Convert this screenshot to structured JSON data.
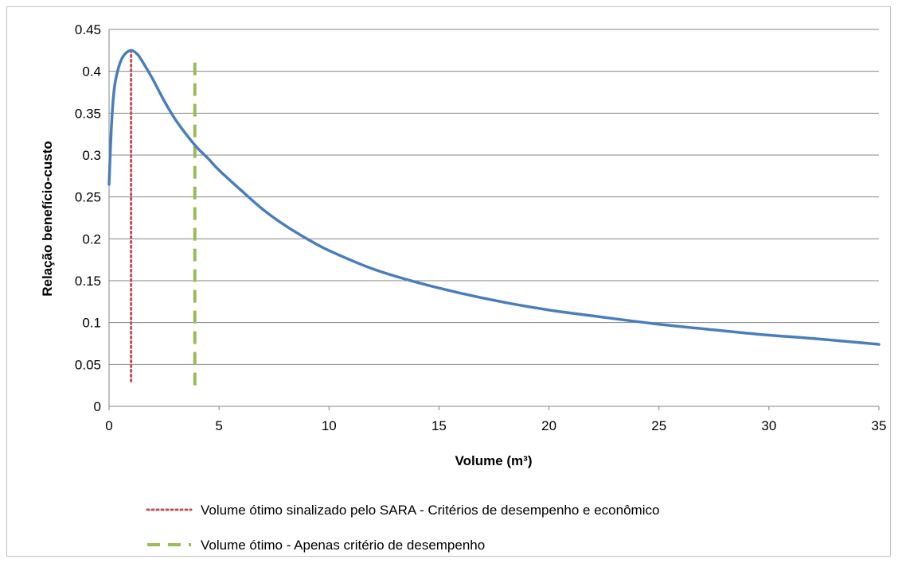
{
  "chart_data": {
    "type": "line",
    "title": "",
    "xlabel": "Volume (m³)",
    "ylabel": "Relação benefício-custo",
    "xlim": [
      0,
      35
    ],
    "ylim": [
      0,
      0.45
    ],
    "x_ticks": [
      "0",
      "5",
      "10",
      "15",
      "20",
      "25",
      "30",
      "35"
    ],
    "y_ticks": [
      "0",
      "0.05",
      "0.1",
      "0.15",
      "0.2",
      "0.25",
      "0.3",
      "0.35",
      "0.4",
      "0.45"
    ],
    "grid": "horizontal",
    "legend_position": "bottom",
    "series": [
      {
        "color": "#4a7ebb",
        "x": [
          0,
          0.1,
          0.2,
          0.3,
          0.5,
          0.7,
          1.0,
          1.3,
          1.6,
          2.0,
          2.5,
          3.0,
          3.5,
          4.0,
          4.5,
          5.0,
          6.0,
          7.0,
          8.0,
          9.0,
          10.0,
          12.0,
          14.0,
          16.0,
          18.0,
          20.0,
          22.0,
          25.0,
          28.0,
          30.0,
          32.0,
          35.0
        ],
        "y": [
          0.265,
          0.33,
          0.37,
          0.39,
          0.41,
          0.42,
          0.425,
          0.42,
          0.408,
          0.39,
          0.365,
          0.343,
          0.325,
          0.309,
          0.296,
          0.282,
          0.258,
          0.235,
          0.216,
          0.2,
          0.186,
          0.164,
          0.148,
          0.135,
          0.124,
          0.115,
          0.108,
          0.098,
          0.09,
          0.085,
          0.081,
          0.074
        ]
      }
    ],
    "markers": [
      {
        "label": "Volume ótimo sinalizado pelo SARA - Critérios de desempenho e econômico",
        "x": 1.0,
        "y_range": [
          0.03,
          0.425
        ],
        "color": "#c0504d",
        "style": "dotted"
      },
      {
        "label": "Volume ótimo - Apenas critério de desempenho",
        "x": 3.9,
        "y_range": [
          0.025,
          0.415
        ],
        "color": "#9bbb59",
        "style": "dashed"
      }
    ]
  }
}
